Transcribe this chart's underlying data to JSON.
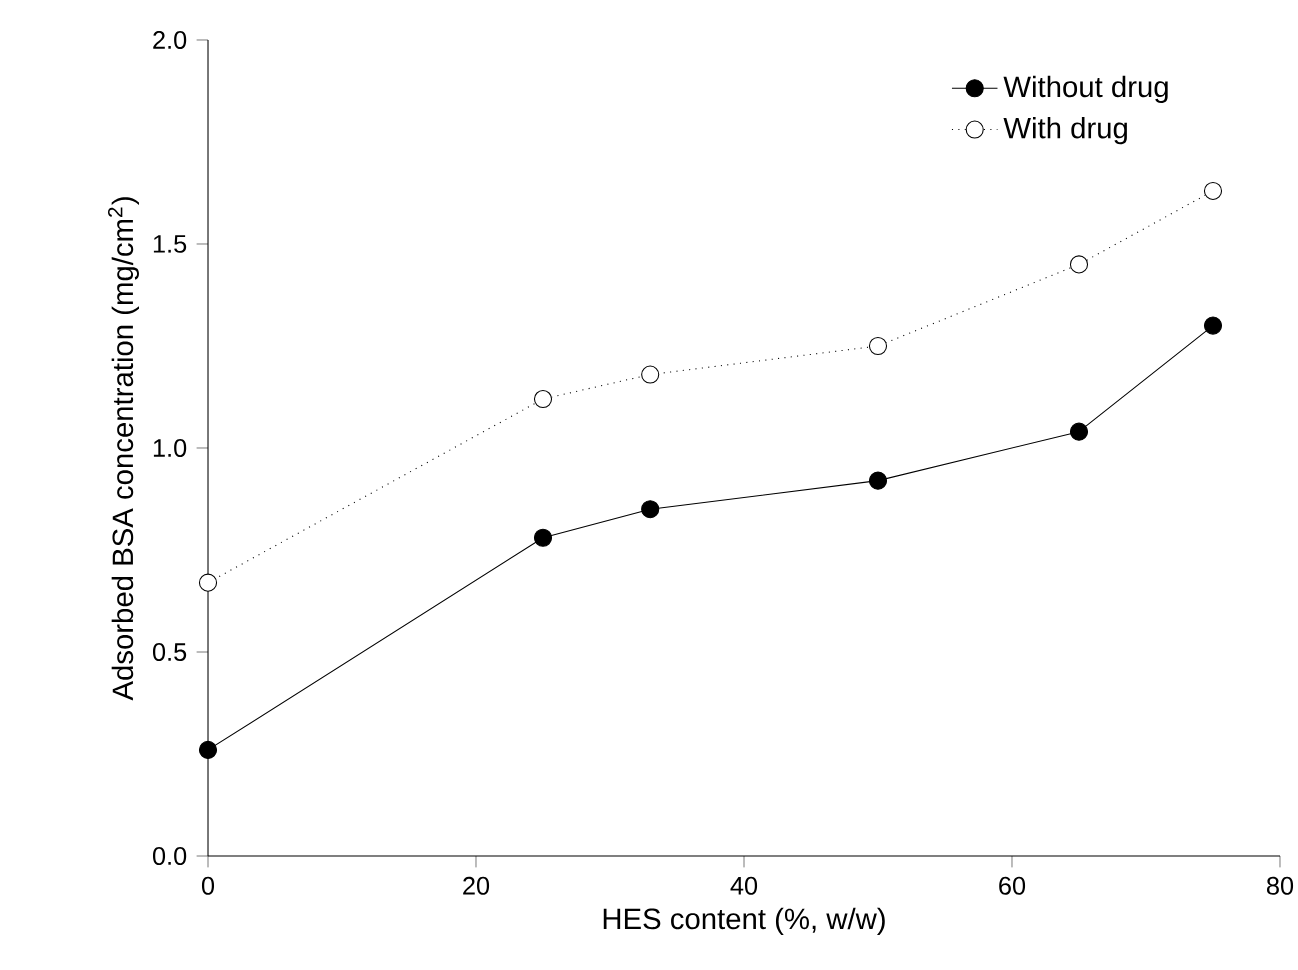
{
  "chart_data": {
    "type": "line",
    "xlabel": "HES content (%, w/w)",
    "ylabel": "Adsorbed BSA concentration (mg/cm$^{2}$)",
    "x": [
      0,
      25,
      33,
      50,
      65,
      75
    ],
    "series": [
      {
        "name": "Without drug",
        "color": "#000000",
        "values": [
          0.26,
          0.78,
          0.85,
          0.92,
          1.04,
          1.3
        ],
        "line_style": "solid"
      },
      {
        "name": "With drug",
        "color": "#000000",
        "values": [
          0.67,
          1.12,
          1.18,
          1.25,
          1.45,
          1.63
        ],
        "line_style": "dotted"
      }
    ],
    "xlim": [
      0,
      80
    ],
    "ylim": [
      0,
      2
    ],
    "xticks": [
      0,
      20,
      40,
      60,
      80
    ],
    "yticks": [
      {
        "value": 0,
        "label": "0.0"
      },
      {
        "value": 0.5,
        "label": "0.5"
      },
      {
        "value": 1,
        "label": "1.0"
      },
      {
        "value": 1.5,
        "label": "1.5"
      },
      {
        "value": 2,
        "label": "2.0"
      }
    ],
    "marker": "circle",
    "legend": "top right",
    "grid": false
  }
}
